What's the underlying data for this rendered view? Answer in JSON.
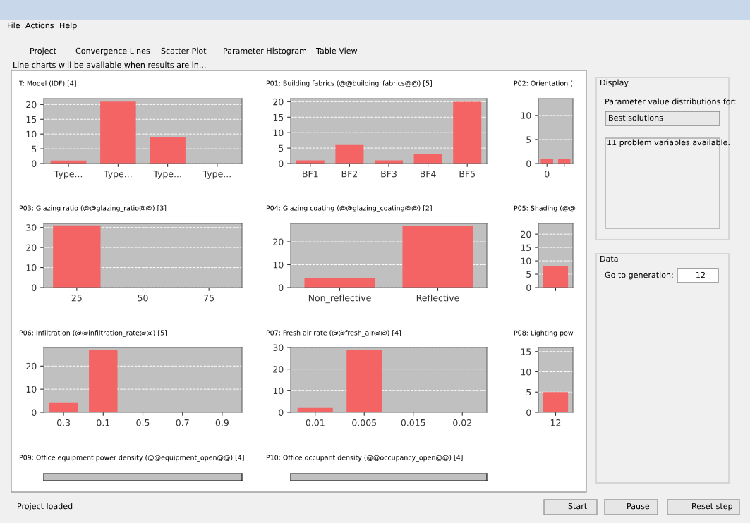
{
  "chart_data": [
    {
      "type": "bar",
      "title": "T: Model (IDF) [4]",
      "categories": [
        "Type...",
        "Type...",
        "Type...",
        "Type..."
      ],
      "values": [
        1,
        21,
        9,
        0
      ],
      "color": "#f56464",
      "ylim": [
        0,
        22
      ],
      "yticks": [
        0,
        5,
        10,
        15,
        20
      ],
      "grid": "y"
    },
    {
      "type": "bar",
      "title": "P01: Building fabrics (@@building_fabrics@@) [5]",
      "categories": [
        "BF1",
        "BF2",
        "BF3",
        "BF4",
        "BF5"
      ],
      "values": [
        1,
        6,
        1,
        3,
        20
      ],
      "color": "#f56464",
      "ylim": [
        0,
        21
      ],
      "yticks": [
        0,
        5,
        10,
        15,
        20
      ],
      "grid": "y"
    },
    {
      "type": "bar",
      "title": "P02: Orientation (",
      "categories": [
        "0",
        null
      ],
      "values": [
        1,
        1
      ],
      "color": "#f56464",
      "ylim": [
        0,
        13.5
      ],
      "yticks": [
        0,
        5,
        10
      ],
      "grid": "y"
    },
    {
      "type": "bar",
      "title": "P03: Glazing ratio (@@glazing_ratio@@) [3]",
      "categories": [
        "25",
        "50",
        "75"
      ],
      "values": [
        31,
        0,
        0
      ],
      "color": "#f56464",
      "ylim": [
        0,
        32
      ],
      "yticks": [
        0,
        10,
        20,
        30
      ],
      "grid": "y"
    },
    {
      "type": "bar",
      "title": "P04: Glazing coating (@@glazing_coating@@) [2]",
      "categories": [
        "Non_reflective",
        "Reflective"
      ],
      "values": [
        4,
        27
      ],
      "color": "#f56464",
      "ylim": [
        0,
        28
      ],
      "yticks": [
        0,
        10,
        20
      ],
      "grid": "y"
    },
    {
      "type": "bar",
      "title": "P05: Shading (@@",
      "categories": [
        null
      ],
      "values": [
        8
      ],
      "color": "#f56464",
      "ylim": [
        0,
        24
      ],
      "yticks": [
        0,
        5,
        10,
        15,
        20
      ],
      "grid": "y"
    },
    {
      "type": "bar",
      "title": "P06: Infiltration (@@infiltration_rate@@) [5]",
      "categories": [
        "0.3",
        "0.1",
        "0.5",
        "0.7",
        "0.9"
      ],
      "values": [
        4,
        27,
        0,
        0,
        0
      ],
      "color": "#f56464",
      "ylim": [
        0,
        28
      ],
      "yticks": [
        0,
        10,
        20
      ],
      "grid": "y"
    },
    {
      "type": "bar",
      "title": "P07: Fresh air rate (@@fresh_air@@) [4]",
      "categories": [
        "0.01",
        "0.005",
        "0.015",
        "0.02"
      ],
      "values": [
        2,
        29,
        0,
        0
      ],
      "color": "#f56464",
      "ylim": [
        0,
        30
      ],
      "yticks": [
        0,
        10,
        20,
        30
      ],
      "grid": "y"
    },
    {
      "type": "bar",
      "title": "P08: Lighting pow",
      "categories": [
        "12"
      ],
      "values": [
        5
      ],
      "color": "#f56464",
      "ylim": [
        0,
        16
      ],
      "yticks": [
        0,
        5,
        10,
        15
      ],
      "grid": "y"
    },
    {
      "type": "other",
      "title": "P09: Office equipment power density (@@equipment_open@@) [4]"
    },
    {
      "type": "other",
      "title": "P10: Office occupant density (@@occupancy_open@@) [4]"
    },
    {
      "type": "other",
      "annotations": [
        "File",
        "Actions",
        "Help",
        "Project",
        "Convergence Lines",
        "Scatter Plot",
        "Parameter Histogram",
        "Table View",
        "Line charts will be available when results are in...",
        "Display",
        "Parameter value distributions for:",
        "Best solutions",
        "11 problem variables available.",
        "Data",
        "Go to generation:",
        "12",
        "Project loaded",
        "Start",
        "Pause",
        "Reset step"
      ]
    }
  ]
}
